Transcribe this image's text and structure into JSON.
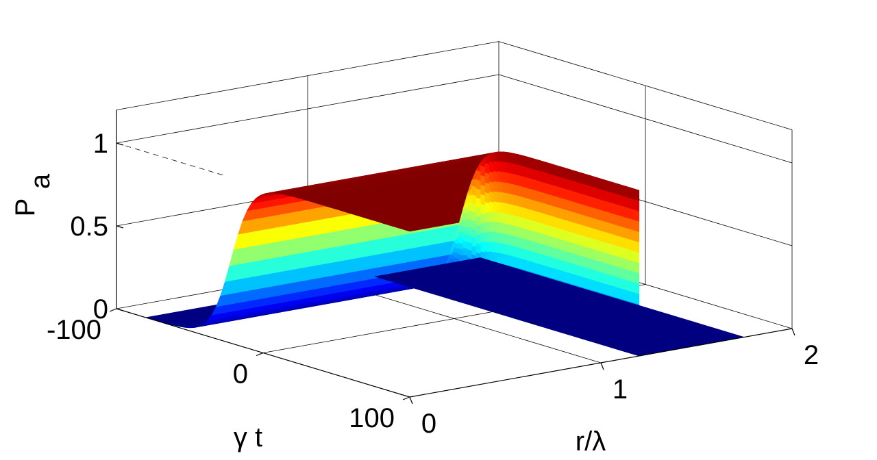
{
  "chart_data": {
    "type": "surface",
    "title": "",
    "xlabel": "r/λ",
    "ylabel": "γ t",
    "zlabel_main": "P",
    "zlabel_sub": "a",
    "x_ticks": [
      0,
      1,
      2
    ],
    "y_ticks": [
      -100,
      0,
      100
    ],
    "z_ticks": [
      0,
      0.5,
      1
    ],
    "xlim": [
      0,
      2
    ],
    "ylim": [
      -100,
      100
    ],
    "zlim": [
      0,
      1.2
    ],
    "colormap": "jet",
    "grid": true,
    "surface": {
      "x_range": [
        0,
        1.2
      ],
      "y_range": [
        -80,
        100
      ],
      "z_max": 1,
      "y_rise_center": -22,
      "y_rise_width": 7,
      "x_drop_edge": 1.2
    },
    "annotation": {
      "dashed_reference_line_at_z": 1
    }
  }
}
